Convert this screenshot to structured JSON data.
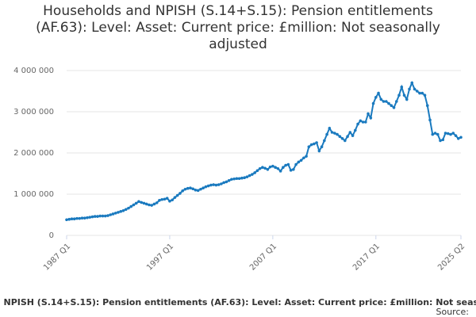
{
  "chart_data": {
    "type": "line",
    "title": "Households and NPISH (S.14+S.15): Pension entitlements (AF.63): Level: Asset: Current price: £million: Not seasonally adjusted",
    "source": "Source:",
    "categories": [
      "1987 Q1",
      null,
      null,
      null,
      null,
      null,
      null,
      null,
      null,
      null,
      null,
      null,
      null,
      null,
      null,
      null,
      null,
      null,
      null,
      null,
      null,
      null,
      null,
      null,
      null,
      null,
      null,
      null,
      null,
      null,
      null,
      null,
      null,
      null,
      null,
      null,
      null,
      null,
      null,
      null,
      "1997 Q1",
      null,
      null,
      null,
      null,
      null,
      null,
      null,
      null,
      null,
      null,
      null,
      null,
      null,
      null,
      null,
      null,
      null,
      null,
      null,
      null,
      null,
      null,
      null,
      null,
      null,
      null,
      null,
      null,
      null,
      null,
      null,
      null,
      null,
      null,
      null,
      null,
      null,
      null,
      null,
      "2007 Q1",
      null,
      null,
      null,
      null,
      null,
      null,
      null,
      null,
      null,
      null,
      null,
      null,
      null,
      null,
      null,
      null,
      null,
      null,
      null,
      null,
      null,
      null,
      null,
      null,
      null,
      null,
      null,
      null,
      null,
      null,
      null,
      null,
      null,
      null,
      null,
      null,
      null,
      null,
      null,
      "2017 Q1",
      null,
      null,
      null,
      null,
      null,
      null,
      null,
      null,
      null,
      null,
      null,
      null,
      null,
      null,
      null,
      null,
      null,
      null,
      null,
      null,
      null,
      null,
      null,
      null,
      null,
      null,
      null,
      null,
      null,
      null,
      null,
      null,
      "2025 Q2"
    ],
    "series": [
      {
        "name": "Households and NPISH (S.14+S.15): Pension entitlements (AF.63): Level: Asset: Current price: £million: Not seasonally adjusted",
        "color": "#1a7abf",
        "values": [
          380000,
          390000,
          400000,
          400000,
          410000,
          410000,
          420000,
          420000,
          430000,
          440000,
          450000,
          460000,
          460000,
          470000,
          470000,
          470000,
          480000,
          500000,
          520000,
          540000,
          560000,
          580000,
          600000,
          630000,
          660000,
          700000,
          740000,
          780000,
          820000,
          800000,
          780000,
          760000,
          740000,
          730000,
          760000,
          790000,
          850000,
          870000,
          880000,
          900000,
          830000,
          860000,
          920000,
          970000,
          1020000,
          1080000,
          1120000,
          1140000,
          1150000,
          1130000,
          1100000,
          1090000,
          1120000,
          1150000,
          1180000,
          1200000,
          1220000,
          1230000,
          1220000,
          1230000,
          1250000,
          1280000,
          1300000,
          1330000,
          1360000,
          1370000,
          1380000,
          1380000,
          1390000,
          1400000,
          1420000,
          1450000,
          1480000,
          1520000,
          1570000,
          1620000,
          1650000,
          1630000,
          1600000,
          1660000,
          1680000,
          1650000,
          1620000,
          1560000,
          1650000,
          1700000,
          1720000,
          1580000,
          1600000,
          1720000,
          1780000,
          1820000,
          1880000,
          1920000,
          2150000,
          2200000,
          2220000,
          2250000,
          2050000,
          2150000,
          2300000,
          2450000,
          2600000,
          2500000,
          2480000,
          2450000,
          2400000,
          2350000,
          2300000,
          2400000,
          2500000,
          2420000,
          2550000,
          2700000,
          2780000,
          2750000,
          2750000,
          2950000,
          2850000,
          3200000,
          3350000,
          3450000,
          3300000,
          3250000,
          3250000,
          3200000,
          3150000,
          3100000,
          3250000,
          3400000,
          3600000,
          3400000,
          3300000,
          3550000,
          3700000,
          3550000,
          3500000,
          3450000,
          3450000,
          3400000,
          3150000,
          2800000,
          2450000,
          2480000,
          2450000,
          2300000,
          2320000,
          2480000,
          2470000,
          2450000,
          2480000,
          2420000,
          2350000,
          2380000
        ]
      }
    ],
    "ylim": [
      0,
      4000000
    ],
    "yticks": [
      0,
      {
        "value": 1000000,
        "label": "1 000 000"
      },
      {
        "value": 2000000,
        "label": "2 000 000"
      },
      {
        "value": 3000000,
        "label": "3 000 000"
      },
      {
        "value": 4000000,
        "label": "4 000 000"
      }
    ],
    "grid": true
  }
}
